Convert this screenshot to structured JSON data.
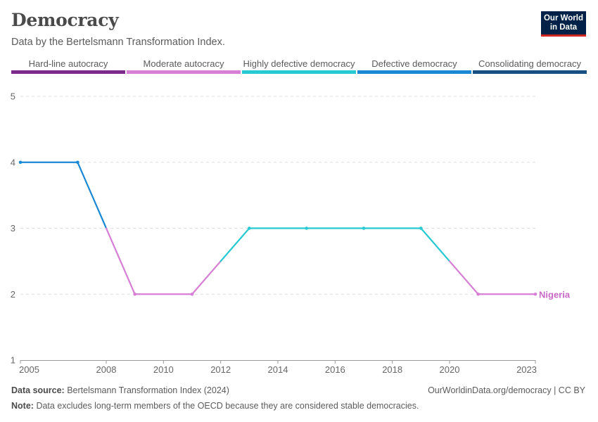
{
  "title": "Democracy",
  "subtitle": "Data by the Bertelsmann Transformation Index.",
  "logo": {
    "line1": "Our World",
    "line2": "in Data"
  },
  "legend": [
    {
      "label": "Hard-line autocracy",
      "color": "#7b2a8b"
    },
    {
      "label": "Moderate autocracy",
      "color": "#d67fd5"
    },
    {
      "label": "Highly defective democracy",
      "color": "#27c9d2"
    },
    {
      "label": "Defective democracy",
      "color": "#1a88d4"
    },
    {
      "label": "Consolidating democracy",
      "color": "#174f82"
    }
  ],
  "chart_data": {
    "type": "line",
    "title": "Democracy",
    "subtitle": "Data by the Bertelsmann Transformation Index.",
    "xlabel": "",
    "ylabel": "",
    "xlim": [
      2005,
      2023
    ],
    "ylim": [
      1,
      5
    ],
    "x_ticks": [
      2005,
      2008,
      2010,
      2012,
      2014,
      2016,
      2018,
      2020,
      2023
    ],
    "y_ticks": [
      1,
      2,
      3,
      4,
      5
    ],
    "grid": "horizontal dashed",
    "series": [
      {
        "name": "Nigeria",
        "x": [
          2005,
          2007,
          2009,
          2011,
          2013,
          2015,
          2017,
          2019,
          2021,
          2023
        ],
        "values": [
          4,
          4,
          2,
          2,
          3,
          3,
          3,
          3,
          2,
          2
        ]
      }
    ],
    "color_scale": [
      {
        "value": 1,
        "color": "#7b2a8b"
      },
      {
        "value": 2,
        "color": "#d67fd5"
      },
      {
        "value": 3,
        "color": "#27c9d2"
      },
      {
        "value": 4,
        "color": "#1a88d4"
      },
      {
        "value": 5,
        "color": "#174f82"
      }
    ]
  },
  "footer": {
    "source_label": "Data source:",
    "source_text": "Bertelsmann Transformation Index (2024)",
    "url": "OurWorldinData.org/democracy | CC BY",
    "note_label": "Note:",
    "note_text": "Data excludes long-term members of the OECD because they are considered stable democracies."
  }
}
